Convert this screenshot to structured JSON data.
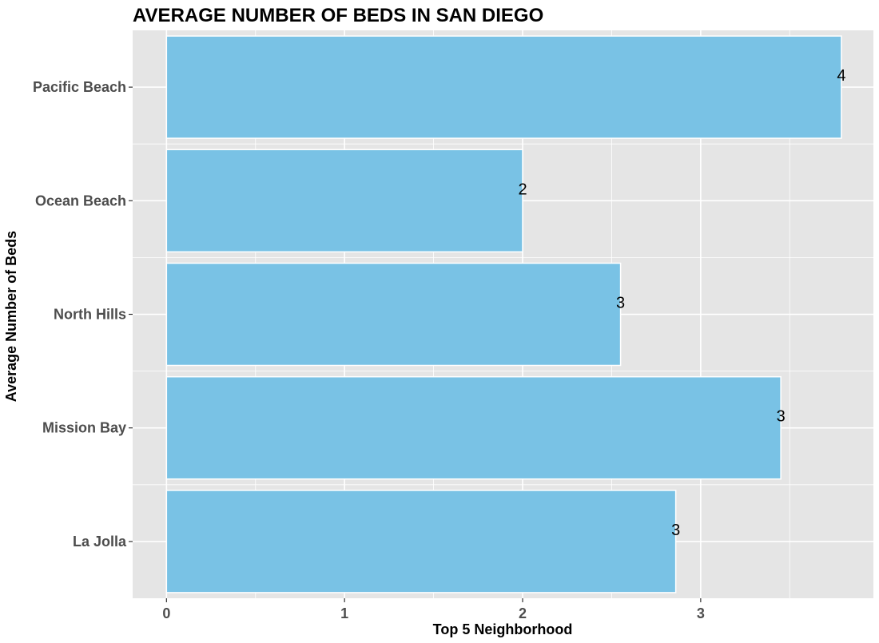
{
  "chart_data": {
    "type": "bar",
    "orientation": "horizontal",
    "title": "AVERAGE NUMBER OF BEDS IN SAN DIEGO",
    "xlabel": "Top 5 Neighborhood",
    "ylabel": "Average Number of Beds",
    "categories": [
      "La Jolla",
      "Mission Bay",
      "North Hills",
      "Ocean Beach",
      "Pacific Beach"
    ],
    "values": [
      2.86,
      3.45,
      2.55,
      2.0,
      3.79
    ],
    "data_labels": [
      "3",
      "3",
      "3",
      "2",
      "4"
    ],
    "x_ticks": [
      0,
      1,
      2,
      3
    ],
    "x_tick_labels": [
      "0",
      "1",
      "2",
      "3"
    ],
    "xlim": [
      -0.19,
      3.97
    ],
    "grid": true,
    "colors": {
      "bar_fill": "#79c2e5",
      "bar_stroke": "#ffffff",
      "panel_bg": "#e5e5e5",
      "grid": "#ffffff",
      "tick_text": "#4d4d4d"
    }
  }
}
